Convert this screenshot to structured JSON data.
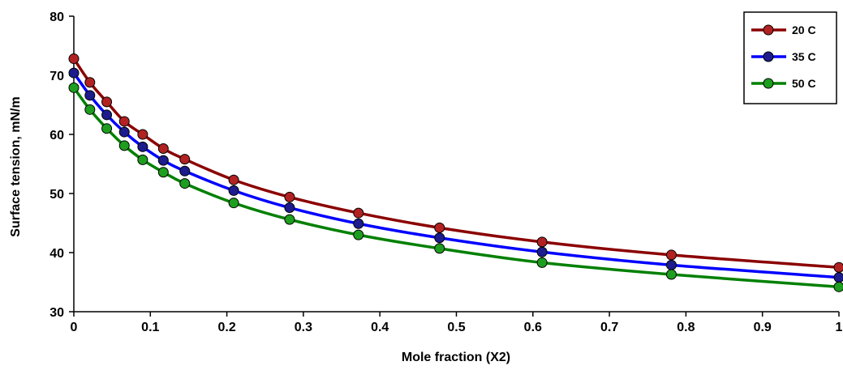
{
  "chart_data": {
    "type": "line",
    "title": "",
    "xlabel": "Mole fraction  (X2)",
    "ylabel": "Surface tension, mN/m",
    "xlim": [
      0,
      1
    ],
    "ylim": [
      30,
      80
    ],
    "xticks": [
      0,
      0.1,
      0.2,
      0.3,
      0.4,
      0.5,
      0.6,
      0.7,
      0.8,
      0.9,
      1
    ],
    "xtick_labels": [
      "0",
      "0.1",
      "0.2",
      "0.3",
      "0.4",
      "0.5",
      "0.6",
      "0.7",
      "0.8",
      "0.9",
      "1"
    ],
    "yticks": [
      30,
      40,
      50,
      60,
      70,
      80
    ],
    "ytick_labels": [
      "30",
      "40",
      "50",
      "60",
      "70",
      "80"
    ],
    "grid": false,
    "legend": "top-right",
    "x": [
      0,
      0.021,
      0.043,
      0.066,
      0.09,
      0.117,
      0.145,
      0.209,
      0.282,
      0.372,
      0.478,
      0.612,
      0.781,
      1.0
    ],
    "series": [
      {
        "name": "20 C",
        "color": "#8B0000",
        "marker_color": "#B22222",
        "values": [
          72.8,
          68.8,
          65.5,
          62.2,
          60.0,
          57.6,
          55.8,
          52.3,
          49.4,
          46.7,
          44.2,
          41.8,
          39.6,
          37.5
        ]
      },
      {
        "name": "35 C",
        "color": "#0000FF",
        "marker_color": "#1C1C8C",
        "values": [
          70.4,
          66.6,
          63.3,
          60.4,
          57.9,
          55.6,
          53.8,
          50.5,
          47.6,
          44.9,
          42.5,
          40.1,
          37.9,
          35.8
        ]
      },
      {
        "name": "50 C",
        "color": "#008000",
        "marker_color": "#1E9E1E",
        "values": [
          67.9,
          64.2,
          61.0,
          58.1,
          55.7,
          53.6,
          51.7,
          48.4,
          45.6,
          43.0,
          40.7,
          38.3,
          36.3,
          34.2
        ]
      }
    ]
  }
}
